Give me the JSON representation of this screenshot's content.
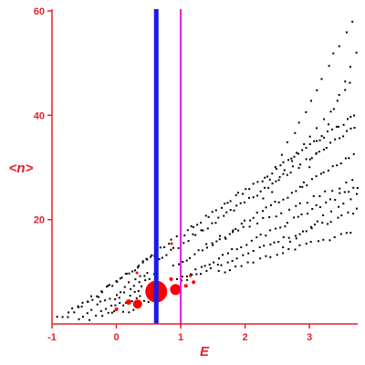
{
  "colors": {
    "axis": "#e8202a",
    "points": "#000000",
    "highlight": "#ff0000",
    "line_primary": "#1a1ae6",
    "line_secondary": "#e61ae6"
  },
  "chart_data": {
    "type": "scatter",
    "xlabel": "E",
    "ylabel": "<n>",
    "xlim": [
      -1,
      3.75
    ],
    "ylim": [
      0,
      60
    ],
    "xticks": [
      -1,
      0,
      1,
      2,
      3
    ],
    "xtick_labels": [
      "-1",
      "0",
      "1",
      "2",
      "3"
    ],
    "yticks": [
      20,
      40,
      60
    ],
    "ytick_labels": [
      "20",
      "40",
      "60"
    ],
    "grid": false,
    "vlines": [
      {
        "x": 0.62,
        "role": "primary"
      },
      {
        "x": 1.0,
        "role": "secondary"
      }
    ],
    "highlighted_points": [
      {
        "x": 0.62,
        "y": 6.2,
        "r": 12
      },
      {
        "x": 0.92,
        "y": 6.6,
        "r": 6
      },
      {
        "x": 0.33,
        "y": 3.8,
        "r": 5
      },
      {
        "x": 0.19,
        "y": 4.2,
        "r": 3
      },
      {
        "x": 0.0,
        "y": 2.8,
        "r": 2
      },
      {
        "x": 1.08,
        "y": 7.3,
        "r": 2
      },
      {
        "x": 1.2,
        "y": 8.0,
        "r": 2
      },
      {
        "x": 0.85,
        "y": 8.6,
        "r": 2
      },
      {
        "x": 1.15,
        "y": 9.2,
        "r": 1.5
      },
      {
        "x": 0.86,
        "y": 15.4,
        "r": 1.5
      },
      {
        "x": 0.32,
        "y": 9.8,
        "r": 1.5
      }
    ],
    "branches": [
      {
        "x0": -0.9,
        "y0": 1.0,
        "x1": 0.35,
        "y1": 11.0,
        "n": 18
      },
      {
        "x0": -0.75,
        "y0": 1.5,
        "x1": 0.55,
        "y1": 13.0,
        "n": 18
      },
      {
        "x0": -0.6,
        "y0": 1.0,
        "x1": 0.5,
        "y1": 10.0,
        "n": 16
      },
      {
        "x0": -0.4,
        "y0": 1.2,
        "x1": 0.6,
        "y1": 9.5,
        "n": 14
      },
      {
        "x0": -0.2,
        "y0": 1.3,
        "x1": 0.4,
        "y1": 7.0,
        "n": 10
      },
      {
        "x0": -0.05,
        "y0": 2.5,
        "x1": 0.45,
        "y1": 6.0,
        "n": 8
      },
      {
        "x0": 0.1,
        "y0": 2.0,
        "x1": 0.5,
        "y1": 4.5,
        "n": 6
      },
      {
        "x0": 0.35,
        "y0": 11.5,
        "x1": 3.75,
        "y1": 40.5,
        "n": 60
      },
      {
        "x0": 0.6,
        "y0": 12.0,
        "x1": 3.75,
        "y1": 38.0,
        "n": 55
      },
      {
        "x0": 0.9,
        "y0": 11.0,
        "x1": 3.75,
        "y1": 33.0,
        "n": 45
      },
      {
        "x0": 0.95,
        "y0": 8.5,
        "x1": 3.75,
        "y1": 26.5,
        "n": 40
      },
      {
        "x0": 1.0,
        "y0": 8.2,
        "x1": 3.75,
        "y1": 22.0,
        "n": 35
      },
      {
        "x0": 1.4,
        "y0": 15.0,
        "x1": 3.75,
        "y1": 28.0,
        "n": 25
      },
      {
        "x0": 1.6,
        "y0": 10.0,
        "x1": 3.75,
        "y1": 18.0,
        "n": 25
      },
      {
        "x0": 2.3,
        "y0": 24.0,
        "x1": 3.75,
        "y1": 48.0,
        "n": 15
      },
      {
        "x0": 2.4,
        "y0": 28.0,
        "x1": 3.75,
        "y1": 60.0,
        "n": 16
      },
      {
        "x0": 2.6,
        "y0": 15.0,
        "x1": 3.75,
        "y1": 25.0,
        "n": 12
      },
      {
        "x0": 2.9,
        "y0": 27.0,
        "x1": 3.75,
        "y1": 52.0,
        "n": 10
      }
    ]
  }
}
